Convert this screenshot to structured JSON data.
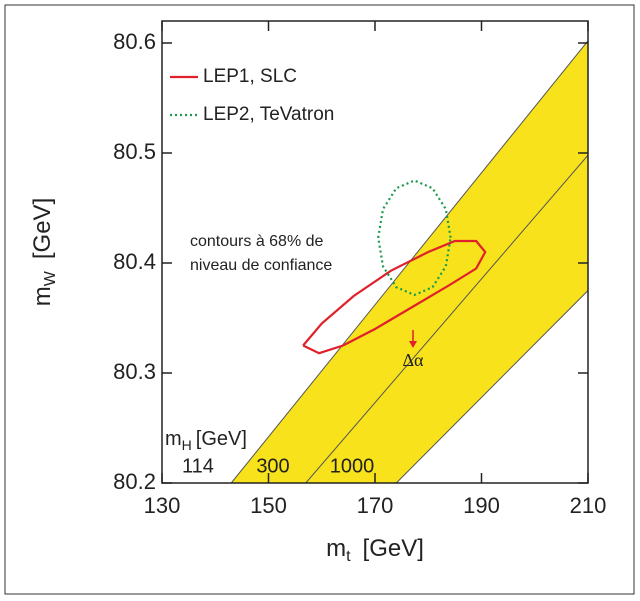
{
  "chart_data": {
    "type": "band-contour",
    "xlabel_symbol": "m",
    "xlabel_subscript": "t",
    "xlabel_unit": "[GeV]",
    "ylabel_symbol": "m",
    "ylabel_subscript": "W",
    "ylabel_unit": "[GeV]",
    "xlim": [
      130,
      210
    ],
    "xticks": [
      130,
      150,
      170,
      190,
      210
    ],
    "ylim": [
      80.2,
      80.62
    ],
    "yticks": [
      80.2,
      80.3,
      80.4,
      80.5,
      80.6
    ],
    "band_color": "#f7e21b",
    "band_label_symbol": "m",
    "band_label_subscript": "H",
    "band_label_unit": "[GeV]",
    "band_label_color": "#3a3a9c",
    "band_lines": [
      {
        "name": "114",
        "color": "#3a3a9c",
        "x": [
          143,
          210
        ],
        "y": [
          80.2,
          80.602
        ]
      },
      {
        "name": "300",
        "color": "#222222",
        "x": [
          157,
          210
        ],
        "y": [
          80.2,
          80.498
        ]
      },
      {
        "name": "1000",
        "color": "#222222",
        "x": [
          174,
          210
        ],
        "y": [
          80.2,
          80.375
        ]
      }
    ],
    "contours": [
      {
        "name": "LEP1, SLC",
        "color": "#e0202a",
        "dashed": false,
        "x": [
          156.5,
          160,
          166,
          173,
          180,
          185,
          189,
          190.7,
          189,
          184,
          177,
          170,
          164,
          159.5,
          156.5
        ],
        "y": [
          80.325,
          80.345,
          80.37,
          80.393,
          80.41,
          80.42,
          80.42,
          80.41,
          80.395,
          80.38,
          80.36,
          80.34,
          80.325,
          80.318,
          80.325
        ]
      },
      {
        "name": "LEP2, TeVatron",
        "color": "#1a9a4a",
        "dashed": true,
        "x": [
          184.2,
          183.3,
          180.8,
          177.4,
          174.0,
          171.5,
          170.6,
          171.5,
          174.0,
          177.4,
          180.8,
          183.3,
          184.2
        ],
        "y": [
          80.423,
          80.449,
          80.468,
          80.475,
          80.468,
          80.449,
          80.423,
          80.397,
          80.378,
          80.371,
          80.378,
          80.397,
          80.423
        ]
      }
    ],
    "annotations": [
      "contours à 68% de",
      "niveau de confiance"
    ],
    "shift_label": "Δα",
    "shift_color": "#e0202a"
  }
}
